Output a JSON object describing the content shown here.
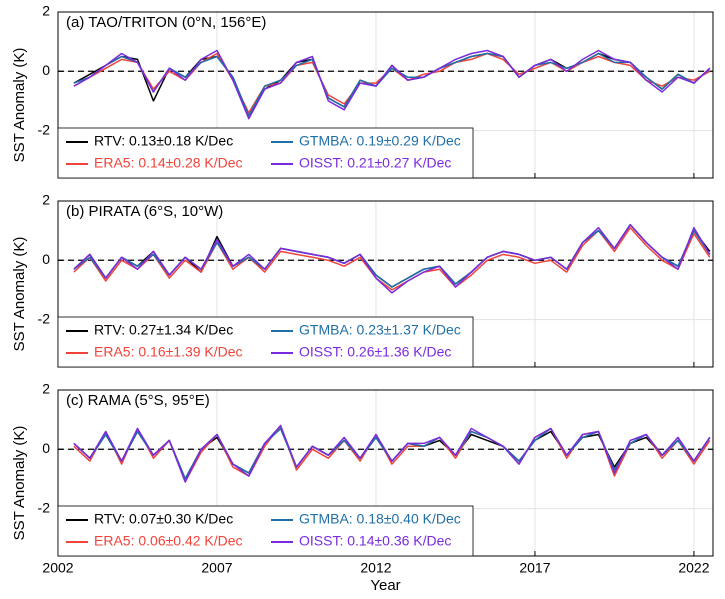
{
  "chart_data": [
    {
      "type": "line",
      "title": "(a) TAO/TRITON (0°N, 156°E)",
      "ylabel": "SST Anomaly (K)",
      "x": [
        2002.5,
        2003,
        2003.5,
        2004,
        2004.5,
        2005,
        2005.5,
        2006,
        2006.5,
        2007,
        2007.5,
        2008,
        2008.5,
        2009,
        2009.5,
        2010,
        2010.5,
        2011,
        2011.5,
        2012,
        2012.5,
        2013,
        2013.5,
        2014,
        2014.5,
        2015,
        2015.5,
        2016,
        2016.5,
        2017,
        2017.5,
        2018,
        2018.5,
        2019,
        2019.5,
        2020,
        2020.5,
        2021,
        2021.5,
        2022,
        2022.5
      ],
      "xlim": [
        2002,
        2022.6
      ],
      "xticks": [
        2002,
        2007,
        2012,
        2017,
        2022
      ],
      "ylim": [
        -3.6,
        2
      ],
      "yticks": [
        -2,
        0,
        2
      ],
      "grid": true,
      "legend": "lower left",
      "series": [
        {
          "name": "RTV: 0.13±0.18 K/Dec",
          "color": "#000000",
          "values": [
            -0.4,
            -0.1,
            0.2,
            0.5,
            0.4,
            -1.0,
            0.1,
            -0.2,
            0.4,
            0.5,
            -0.2,
            -1.5,
            -0.6,
            -0.3,
            0.3,
            0.4,
            -0.9,
            -1.2,
            -0.3,
            -0.5,
            0.2,
            -0.3,
            -0.2,
            0.1,
            0.3,
            0.5,
            0.6,
            0.5,
            -0.2,
            0.2,
            0.4,
            0.1,
            0.3,
            0.6,
            0.4,
            0.3,
            -0.2,
            -0.6,
            -0.1,
            -0.4,
            0.1
          ]
        },
        {
          "name": "ERA5: 0.14±0.28 K/Dec",
          "color": "#f0433a",
          "values": [
            -0.5,
            -0.2,
            0.1,
            0.4,
            0.3,
            -0.6,
            0.0,
            -0.3,
            0.3,
            0.6,
            -0.3,
            -1.4,
            -0.5,
            -0.4,
            0.2,
            0.3,
            -0.8,
            -1.1,
            -0.4,
            -0.4,
            0.1,
            -0.3,
            -0.1,
            0.0,
            0.3,
            0.4,
            0.6,
            0.4,
            -0.1,
            0.1,
            0.3,
            0.0,
            0.3,
            0.5,
            0.3,
            0.2,
            -0.3,
            -0.5,
            -0.2,
            -0.3,
            0.0
          ]
        },
        {
          "name": "GTMBA: 0.19±0.29 K/Dec",
          "color": "#1f6fa8",
          "values": [
            -0.4,
            -0.2,
            0.2,
            0.5,
            0.3,
            -0.7,
            0.1,
            -0.2,
            0.3,
            0.5,
            -0.2,
            -1.5,
            -0.5,
            -0.3,
            0.2,
            0.4,
            -0.9,
            -1.2,
            -0.3,
            -0.5,
            0.1,
            -0.2,
            -0.2,
            0.1,
            0.3,
            0.5,
            0.6,
            0.5,
            -0.2,
            0.2,
            0.3,
            0.1,
            0.3,
            0.6,
            0.3,
            0.3,
            -0.2,
            -0.6,
            -0.1,
            -0.4,
            0.1
          ]
        },
        {
          "name": "OISST: 0.21±0.27 K/Dec",
          "color": "#7a2be0",
          "values": [
            -0.5,
            -0.2,
            0.2,
            0.6,
            0.3,
            -0.7,
            0.1,
            -0.3,
            0.4,
            0.7,
            -0.3,
            -1.6,
            -0.6,
            -0.4,
            0.3,
            0.5,
            -1.0,
            -1.3,
            -0.4,
            -0.5,
            0.2,
            -0.3,
            -0.2,
            0.1,
            0.4,
            0.6,
            0.7,
            0.5,
            -0.2,
            0.2,
            0.4,
            0.0,
            0.4,
            0.7,
            0.4,
            0.3,
            -0.3,
            -0.7,
            -0.2,
            -0.4,
            0.1
          ]
        }
      ]
    },
    {
      "type": "line",
      "title": "(b) PIRATA (6°S, 10°W)",
      "ylabel": "SST Anomaly (K)",
      "x": [
        2002.5,
        2003,
        2003.5,
        2004,
        2004.5,
        2005,
        2005.5,
        2006,
        2006.5,
        2007,
        2007.5,
        2008,
        2008.5,
        2009,
        2009.5,
        2010,
        2010.5,
        2011,
        2011.5,
        2012,
        2012.5,
        2013,
        2013.5,
        2014,
        2014.5,
        2015,
        2015.5,
        2016,
        2016.5,
        2017,
        2017.5,
        2018,
        2018.5,
        2019,
        2019.5,
        2020,
        2020.5,
        2021,
        2021.5,
        2022,
        2022.5
      ],
      "xlim": [
        2002,
        2022.6
      ],
      "xticks": [
        2002,
        2007,
        2012,
        2017,
        2022
      ],
      "ylim": [
        -3.6,
        2
      ],
      "yticks": [
        -2,
        0,
        2
      ],
      "grid": true,
      "legend": "lower left",
      "series": [
        {
          "name": "RTV: 0.27±1.34 K/Dec",
          "color": "#000000",
          "values": [
            -0.3,
            0.2,
            -0.6,
            0.1,
            -0.2,
            0.3,
            -0.5,
            0.1,
            -0.4,
            0.8,
            -0.2,
            0.1,
            -0.3,
            0.4,
            0.3,
            0.2,
            0.1,
            -0.1,
            0.2,
            -0.5,
            -0.9,
            -0.6,
            -0.3,
            -0.2,
            -0.8,
            -0.4,
            0.1,
            0.3,
            0.2,
            0.0,
            0.1,
            -0.3,
            0.6,
            1.0,
            0.4,
            1.2,
            0.6,
            0.1,
            -0.2,
            1.0,
            0.3
          ]
        },
        {
          "name": "ERA5: 0.16±1.39 K/Dec",
          "color": "#f0433a",
          "values": [
            -0.4,
            0.1,
            -0.7,
            0.0,
            -0.3,
            0.2,
            -0.6,
            0.0,
            -0.4,
            0.6,
            -0.3,
            0.1,
            -0.4,
            0.3,
            0.2,
            0.1,
            0.0,
            -0.2,
            0.1,
            -0.6,
            -1.0,
            -0.7,
            -0.4,
            -0.3,
            -0.9,
            -0.5,
            0.0,
            0.2,
            0.1,
            -0.1,
            0.0,
            -0.4,
            0.5,
            1.0,
            0.3,
            1.1,
            0.5,
            0.0,
            -0.3,
            0.9,
            0.1
          ]
        },
        {
          "name": "GTMBA: 0.23±1.37 K/Dec",
          "color": "#1f6fa8",
          "values": [
            -0.3,
            0.1,
            -0.6,
            0.1,
            -0.2,
            0.2,
            -0.5,
            0.1,
            -0.3,
            0.6,
            -0.2,
            0.1,
            -0.3,
            0.4,
            0.3,
            0.2,
            0.1,
            -0.1,
            0.2,
            -0.5,
            -0.9,
            -0.6,
            -0.3,
            -0.2,
            -0.8,
            -0.4,
            0.1,
            0.3,
            0.2,
            0.0,
            0.1,
            -0.3,
            0.6,
            1.0,
            0.4,
            1.2,
            0.6,
            0.1,
            -0.2,
            1.0,
            0.2
          ]
        },
        {
          "name": "OISST: 0.26±1.36 K/Dec",
          "color": "#7a2be0",
          "values": [
            -0.3,
            0.2,
            -0.6,
            0.1,
            -0.3,
            0.3,
            -0.5,
            0.1,
            -0.3,
            0.7,
            -0.2,
            0.2,
            -0.3,
            0.4,
            0.3,
            0.2,
            0.1,
            -0.1,
            0.2,
            -0.6,
            -1.1,
            -0.7,
            -0.4,
            -0.2,
            -0.9,
            -0.4,
            0.1,
            0.3,
            0.2,
            0.0,
            0.1,
            -0.3,
            0.6,
            1.1,
            0.4,
            1.2,
            0.6,
            0.1,
            -0.3,
            1.1,
            0.2
          ]
        }
      ]
    },
    {
      "type": "line",
      "title": "(c) RAMA (5°S, 95°E)",
      "ylabel": "SST Anomaly (K)",
      "xlabel": "Year",
      "x": [
        2002.5,
        2003,
        2003.5,
        2004,
        2004.5,
        2005,
        2005.5,
        2006,
        2006.5,
        2007,
        2007.5,
        2008,
        2008.5,
        2009,
        2009.5,
        2010,
        2010.5,
        2011,
        2011.5,
        2012,
        2012.5,
        2013,
        2013.5,
        2014,
        2014.5,
        2015,
        2015.5,
        2016,
        2016.5,
        2017,
        2017.5,
        2018,
        2018.5,
        2019,
        2019.5,
        2020,
        2020.5,
        2021,
        2021.5,
        2022,
        2022.5
      ],
      "xlim": [
        2002,
        2022.6
      ],
      "xticks": [
        2002,
        2007,
        2012,
        2017,
        2022
      ],
      "ylim": [
        -3.6,
        2
      ],
      "yticks": [
        -2,
        0,
        2
      ],
      "grid": true,
      "legend": "lower left",
      "series": [
        {
          "name": "RTV: 0.07±0.30 K/Dec",
          "color": "#000000",
          "values": [
            0.2,
            -0.3,
            0.5,
            -0.4,
            0.6,
            -0.2,
            0.3,
            -1.0,
            0.0,
            0.4,
            -0.5,
            -0.8,
            0.2,
            0.7,
            -0.6,
            0.1,
            -0.2,
            0.3,
            -0.3,
            0.4,
            -0.4,
            0.2,
            0.1,
            0.3,
            -0.2,
            0.5,
            0.3,
            0.1,
            -0.4,
            0.3,
            0.6,
            -0.2,
            0.4,
            0.5,
            -0.6,
            0.2,
            0.4,
            -0.2,
            0.3,
            -0.4,
            0.4
          ]
        },
        {
          "name": "ERA5: 0.06±0.42 K/Dec",
          "color": "#f0433a",
          "values": [
            0.1,
            -0.4,
            0.6,
            -0.5,
            0.7,
            -0.3,
            0.3,
            -1.1,
            -0.1,
            0.5,
            -0.6,
            -0.9,
            0.1,
            0.8,
            -0.7,
            0.0,
            -0.3,
            0.3,
            -0.4,
            0.5,
            -0.5,
            0.1,
            0.1,
            0.4,
            -0.3,
            0.6,
            0.4,
            0.1,
            -0.5,
            0.4,
            0.7,
            -0.3,
            0.5,
            0.6,
            -0.9,
            0.2,
            0.5,
            -0.3,
            0.3,
            -0.5,
            0.3
          ]
        },
        {
          "name": "GTMBA: 0.18±0.40 K/Dec",
          "color": "#1f6fa8",
          "values": [
            0.2,
            -0.3,
            0.5,
            -0.4,
            0.6,
            -0.2,
            0.3,
            -1.0,
            0.0,
            0.5,
            -0.5,
            -0.8,
            0.2,
            0.7,
            -0.6,
            0.1,
            -0.2,
            0.3,
            -0.3,
            0.4,
            -0.4,
            0.2,
            0.1,
            0.4,
            -0.2,
            0.6,
            0.4,
            0.1,
            -0.4,
            0.3,
            0.7,
            -0.2,
            0.4,
            0.6,
            -0.7,
            0.2,
            0.5,
            -0.2,
            0.3,
            -0.4,
            0.4
          ]
        },
        {
          "name": "OISST: 0.14±0.36 K/Dec",
          "color": "#7a2be0",
          "values": [
            0.2,
            -0.3,
            0.6,
            -0.4,
            0.7,
            -0.2,
            0.3,
            -1.1,
            0.0,
            0.5,
            -0.5,
            -0.9,
            0.2,
            0.8,
            -0.6,
            0.1,
            -0.2,
            0.4,
            -0.3,
            0.5,
            -0.4,
            0.2,
            0.2,
            0.4,
            -0.2,
            0.7,
            0.4,
            0.1,
            -0.5,
            0.4,
            0.7,
            -0.2,
            0.5,
            0.6,
            -0.8,
            0.3,
            0.5,
            -0.2,
            0.4,
            -0.4,
            0.4
          ]
        }
      ]
    }
  ]
}
